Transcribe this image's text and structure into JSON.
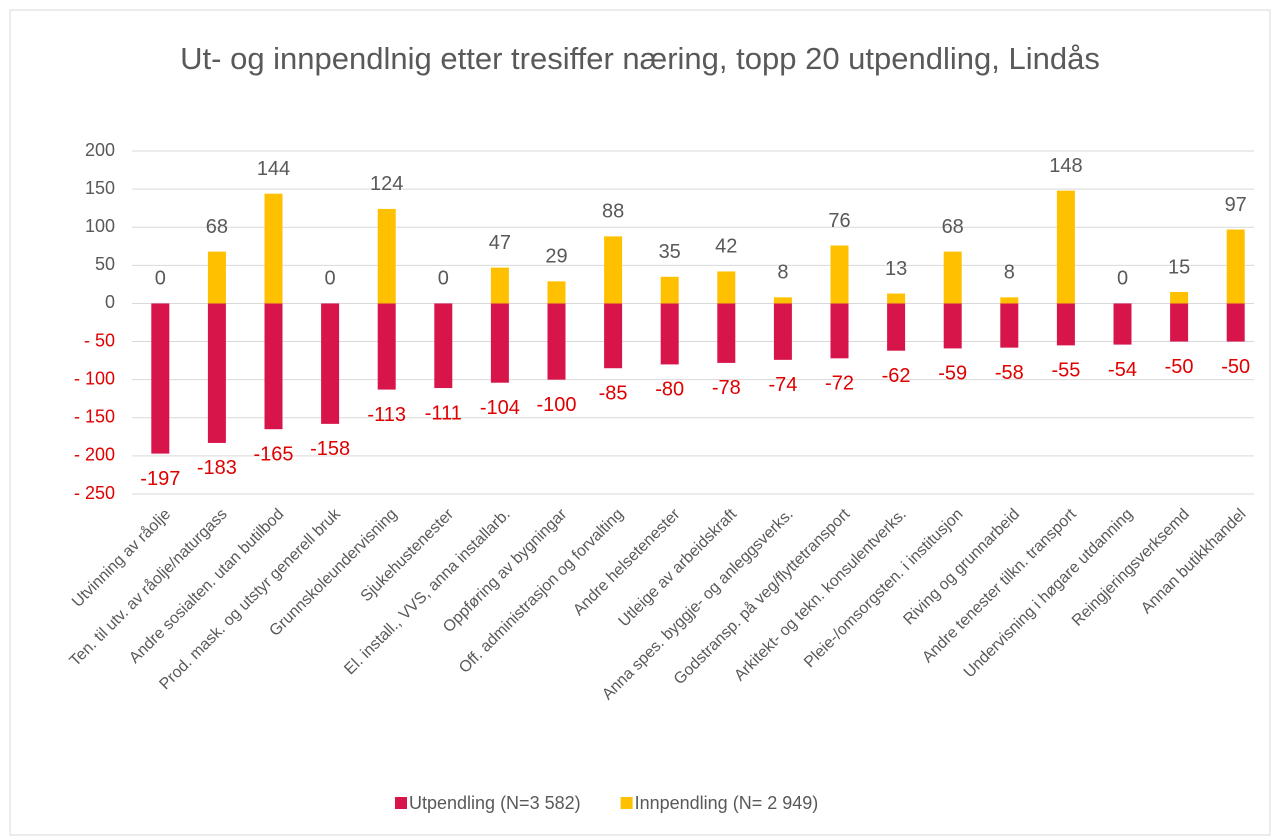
{
  "chart_data": {
    "type": "bar",
    "title": "Ut- og innpendlnig etter tresiffer næring, topp 20 utpendling, Lindås",
    "categories": [
      "Utvinning av råolje",
      "Ten. til utv. av råolje/naturgass",
      "Andre sosialten. utan butilbod",
      "Prod. mask. og utstyr generell bruk",
      "Grunnskoleundervisning",
      "Sjukehustenester",
      "El. install., VVS, anna installarb.",
      "Oppføring av bygningar",
      "Off. administrasjon og forvalting",
      "Andre helsetenester",
      "Utleige av arbeidskraft",
      "Anna spes. byggje- og anleggsverks.",
      "Godstransp. på veg/flyttetransport",
      "Arkitekt- og tekn. konsulentverks.",
      "Pleie-/omsorgsten. i institusjon",
      "Riving og grunnarbeid",
      "Andre tenester tilkn. transport",
      "Undervisning i høgare utdanning",
      "Reingjeringsverksemd",
      "Annan butikkhandel"
    ],
    "series": [
      {
        "name": "Utpendling (N=3 582)",
        "color": "#d7154b",
        "values": [
          -197,
          -183,
          -165,
          -158,
          -113,
          -111,
          -104,
          -100,
          -85,
          -80,
          -78,
          -74,
          -72,
          -62,
          -59,
          -58,
          -55,
          -54,
          -50,
          -50
        ]
      },
      {
        "name": "Innpendling (N= 2 949)",
        "color": "#ffc000",
        "values": [
          0,
          68,
          144,
          0,
          124,
          0,
          47,
          29,
          88,
          35,
          42,
          8,
          76,
          13,
          68,
          8,
          148,
          0,
          15,
          97
        ]
      }
    ],
    "ylim": [
      -250,
      200
    ],
    "yticks": [
      200,
      150,
      100,
      50,
      0,
      {
        "value": -50,
        "label": "- 50"
      },
      {
        "value": -100,
        "label": "- 100"
      },
      {
        "value": -150,
        "label": "- 150"
      },
      {
        "value": -200,
        "label": "- 200"
      },
      {
        "value": -250,
        "label": "- 250"
      }
    ],
    "grid": true,
    "legend": "bottom"
  }
}
